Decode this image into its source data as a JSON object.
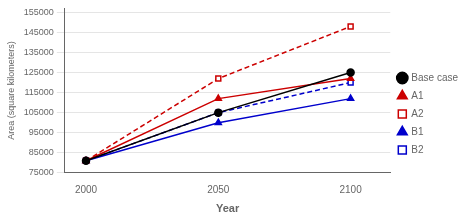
{
  "chart_data": {
    "type": "line",
    "x": [
      2000,
      2050,
      2100
    ],
    "series": [
      {
        "name": "Base case",
        "color": "#000000",
        "marker": "circle",
        "line_style": "solid",
        "values": [
          81000,
          105000,
          125000
        ]
      },
      {
        "name": "A1",
        "color": "#cc0000",
        "marker": "triangle",
        "line_style": "solid",
        "values": [
          81000,
          112000,
          122000
        ]
      },
      {
        "name": "A2",
        "color": "#cc0000",
        "marker": "square",
        "line_style": "dashed",
        "values": [
          81000,
          122000,
          148000
        ]
      },
      {
        "name": "B1",
        "color": "#0000cc",
        "marker": "triangle",
        "line_style": "solid",
        "values": [
          81000,
          100000,
          112000
        ]
      },
      {
        "name": "B2",
        "color": "#0000cc",
        "marker": "square",
        "line_style": "dashed",
        "values": [
          81000,
          105000,
          120000
        ]
      }
    ],
    "x_label": "Year",
    "y_label": "Area (square kilometers)",
    "xlim": [
      1992,
      2115
    ],
    "xticks": [
      2000,
      2050,
      2100
    ],
    "ylim": [
      75000,
      157000
    ],
    "yticks": [
      75000,
      85000,
      95000,
      105000,
      115000,
      125000,
      135000,
      145000,
      155000
    ],
    "grid": "y",
    "legend": "right"
  }
}
